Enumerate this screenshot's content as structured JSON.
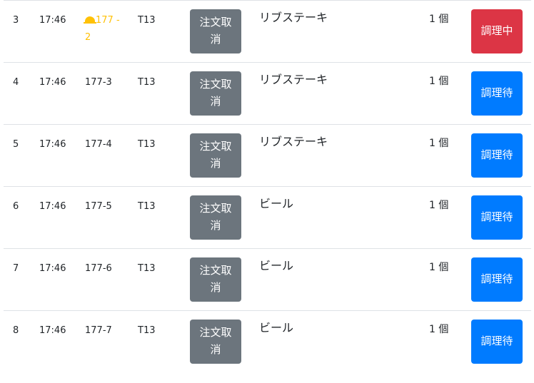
{
  "colors": {
    "cooking": "#dc3545",
    "waiting": "#007bff",
    "cancel": "#6c757d",
    "alert": "#ffc107"
  },
  "rows": [
    {
      "num": "3",
      "time": "17:46",
      "ticket": "177 - 2",
      "alert": true,
      "table": "T13",
      "cancel": "注文取消",
      "item": "リブステーキ",
      "qty": "1 個",
      "status": "調理中",
      "state": "cooking"
    },
    {
      "num": "4",
      "time": "17:46",
      "ticket": "177-3",
      "alert": false,
      "table": "T13",
      "cancel": "注文取消",
      "item": "リブステーキ",
      "qty": "1 個",
      "status": "調理待",
      "state": "waiting"
    },
    {
      "num": "5",
      "time": "17:46",
      "ticket": "177-4",
      "alert": false,
      "table": "T13",
      "cancel": "注文取消",
      "item": "リブステーキ",
      "qty": "1 個",
      "status": "調理待",
      "state": "waiting"
    },
    {
      "num": "6",
      "time": "17:46",
      "ticket": "177-5",
      "alert": false,
      "table": "T13",
      "cancel": "注文取消",
      "item": "ビール",
      "qty": "1 個",
      "status": "調理待",
      "state": "waiting"
    },
    {
      "num": "7",
      "time": "17:46",
      "ticket": "177-6",
      "alert": false,
      "table": "T13",
      "cancel": "注文取消",
      "item": "ビール",
      "qty": "1 個",
      "status": "調理待",
      "state": "waiting"
    },
    {
      "num": "8",
      "time": "17:46",
      "ticket": "177-7",
      "alert": false,
      "table": "T13",
      "cancel": "注文取消",
      "item": "ビール",
      "qty": "1 個",
      "status": "調理待",
      "state": "waiting"
    }
  ]
}
